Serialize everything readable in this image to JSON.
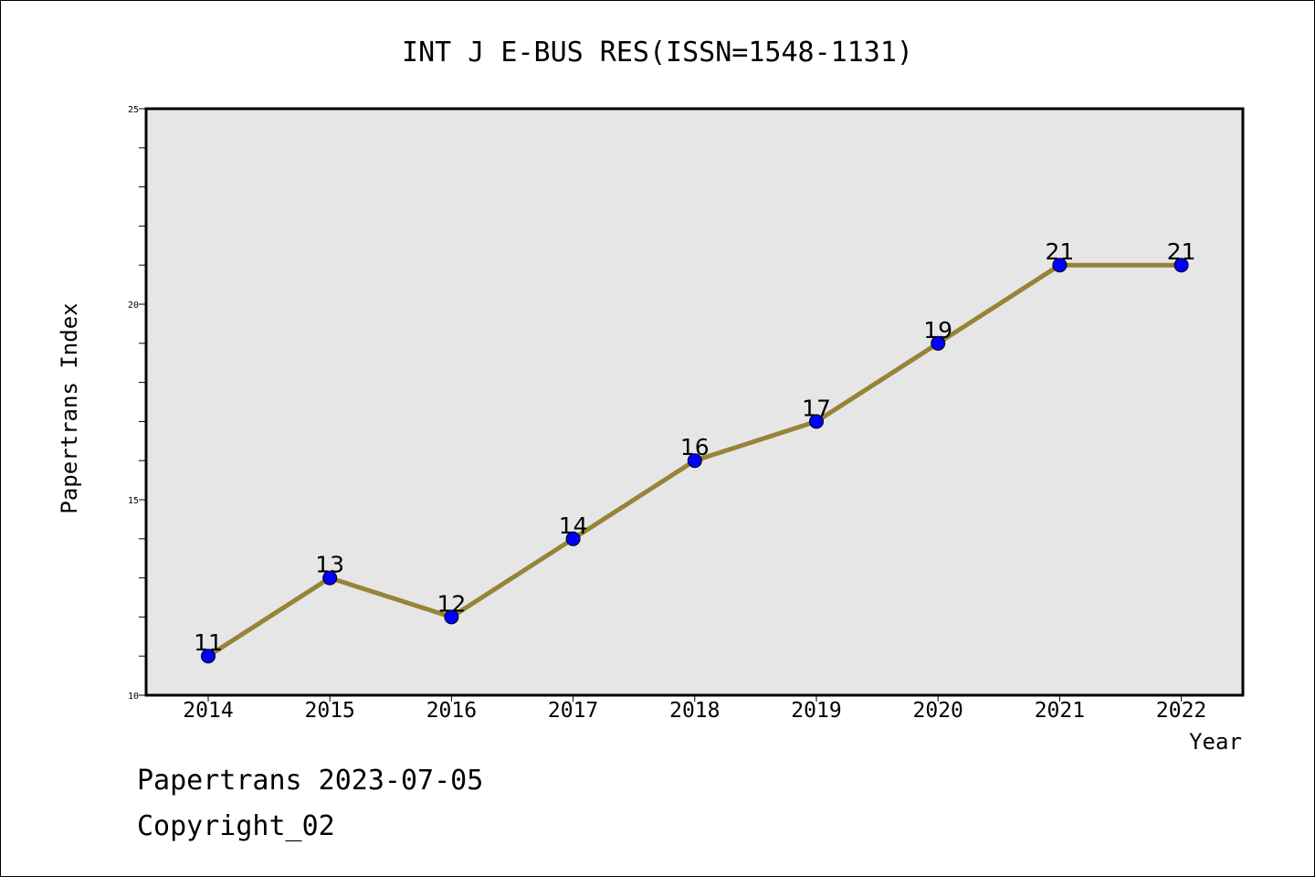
{
  "chart_data": {
    "type": "line",
    "title": "INT J E-BUS RES(ISSN=1548-1131)",
    "xlabel": "Year",
    "ylabel": "Papertrans Index",
    "categories": [
      "2014",
      "2015",
      "2016",
      "2017",
      "2018",
      "2019",
      "2020",
      "2021",
      "2022"
    ],
    "series": [
      {
        "values": [
          11,
          13,
          12,
          14,
          16,
          17,
          19,
          21,
          21
        ]
      }
    ],
    "ylim": [
      10,
      25
    ],
    "yticks": [
      10,
      15,
      20,
      25
    ],
    "yticks_minor_step": 1,
    "grid": false,
    "line_color": "#968438",
    "marker_color": "#0000ff",
    "plot_background": "#e6e6e6"
  },
  "footer": {
    "line1": "Papertrans 2023-07-05",
    "line2": "Copyright_02"
  }
}
